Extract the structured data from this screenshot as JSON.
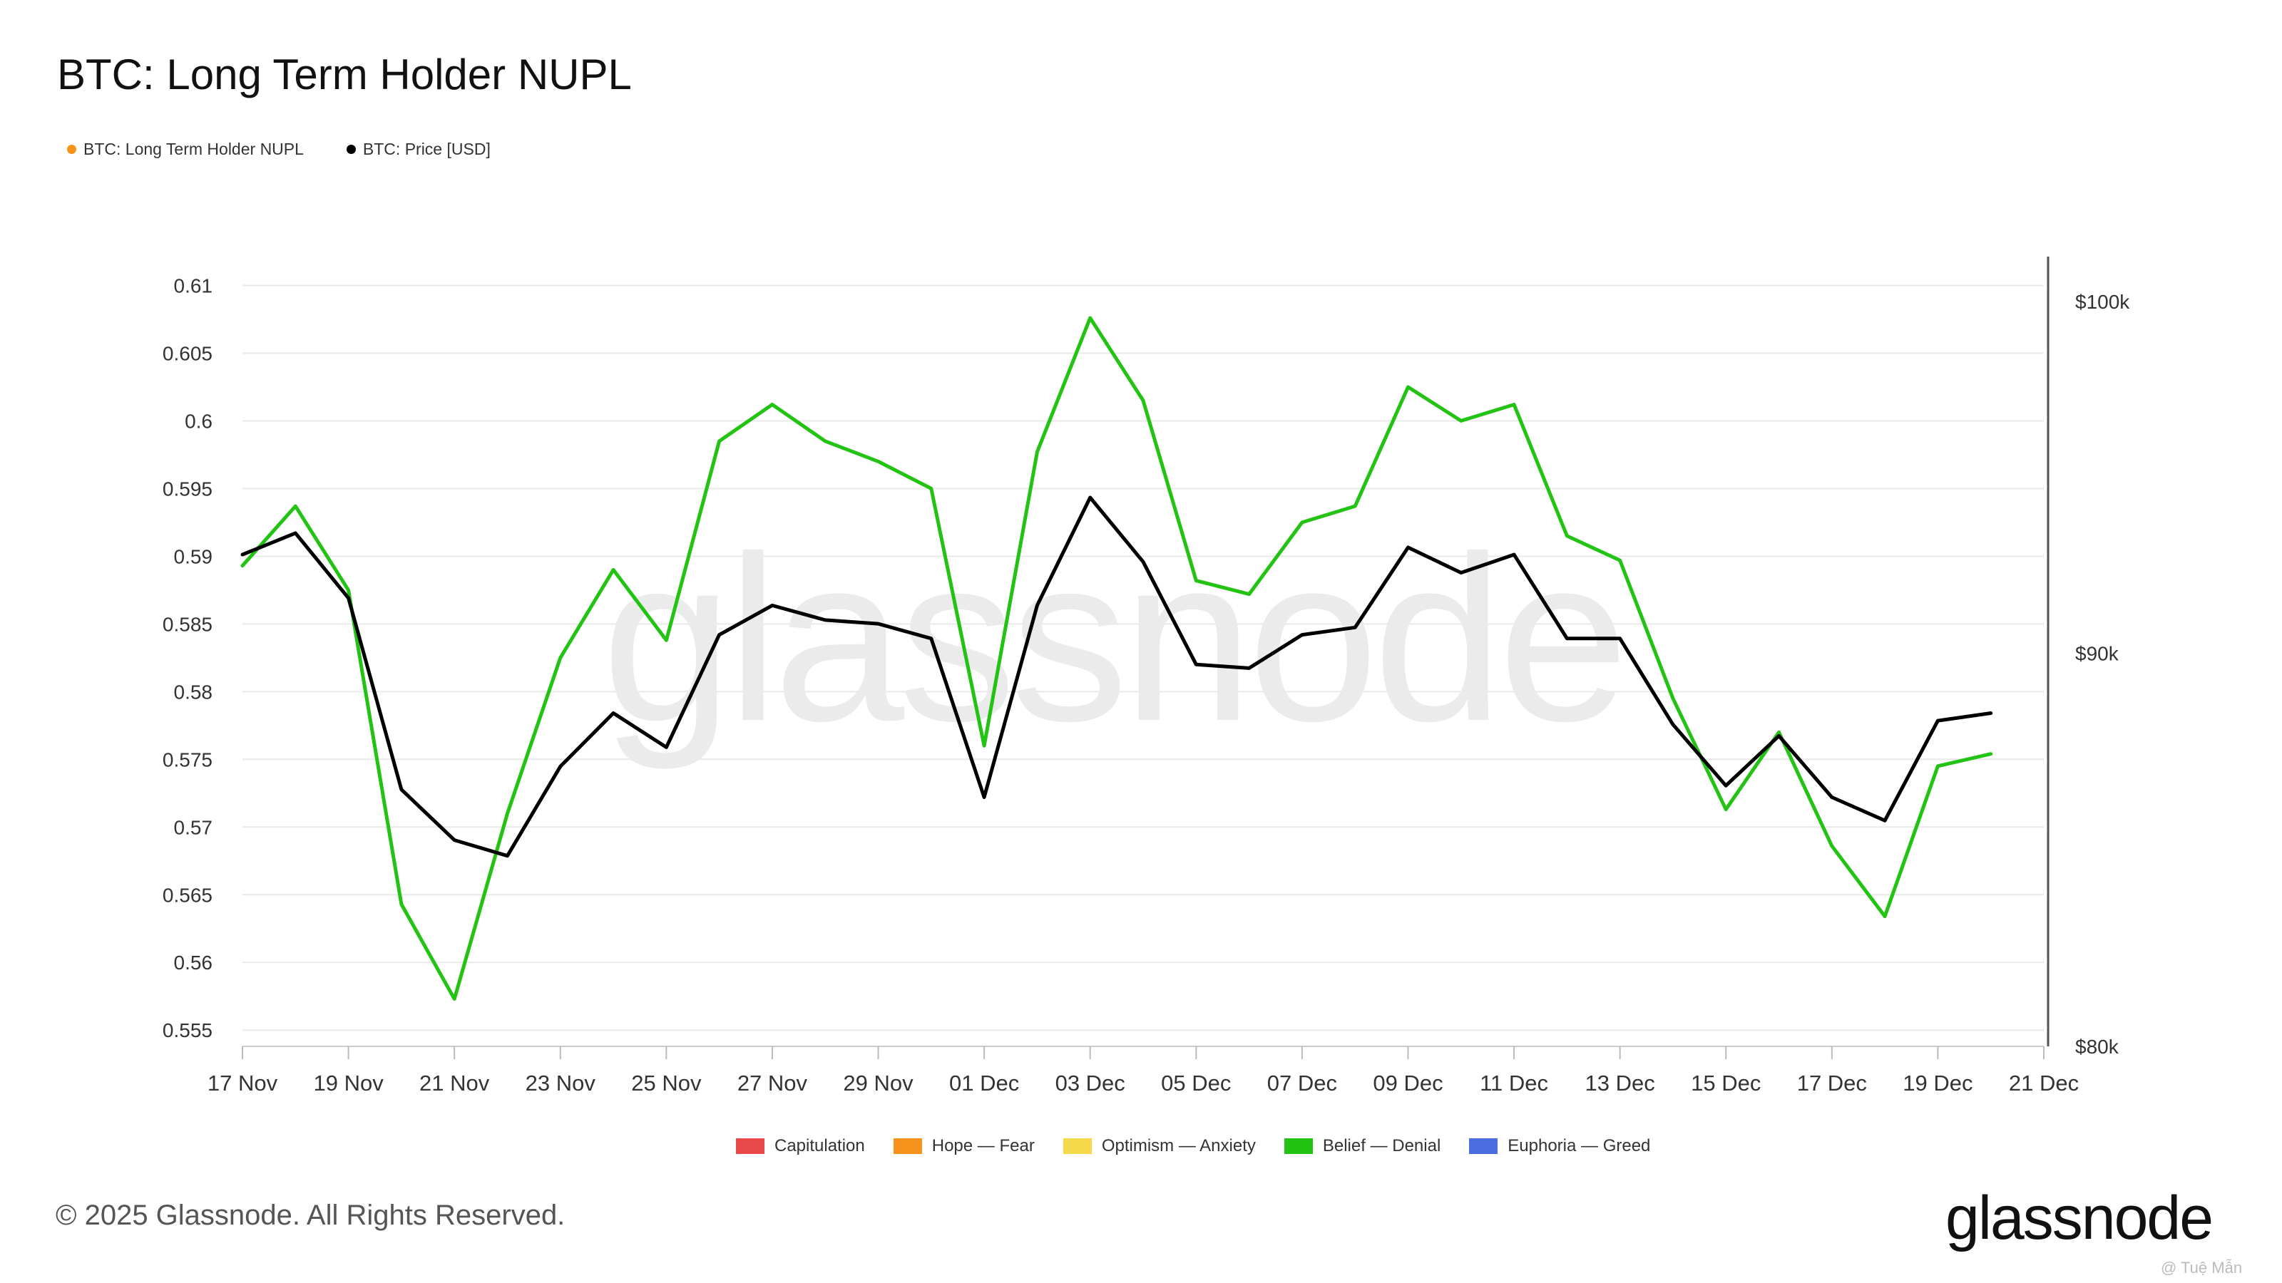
{
  "header": {
    "title": "BTC: Long Term Holder NUPL"
  },
  "legend": [
    {
      "label": "BTC: Long Term Holder NUPL",
      "color": "#f7931a"
    },
    {
      "label": "BTC: Price [USD]",
      "color": "#000000"
    }
  ],
  "zones": [
    {
      "label": "Capitulation",
      "color": "#e84a4a"
    },
    {
      "label": "Hope — Fear",
      "color": "#f7931a"
    },
    {
      "label": "Optimism — Anxiety",
      "color": "#f5d94a"
    },
    {
      "label": "Belief — Denial",
      "color": "#22c313"
    },
    {
      "label": "Euphoria — Greed",
      "color": "#4a6ee0"
    }
  ],
  "footer": {
    "copyright": "© 2025 Glassnode. All Rights Reserved.",
    "brand": "glassnode",
    "credit": "@ Tuệ Mẫn"
  },
  "chart_data": {
    "type": "line",
    "watermark": "glassnode",
    "x": [
      "17 Nov",
      "18 Nov",
      "19 Nov",
      "20 Nov",
      "21 Nov",
      "22 Nov",
      "23 Nov",
      "24 Nov",
      "25 Nov",
      "26 Nov",
      "27 Nov",
      "28 Nov",
      "29 Nov",
      "30 Nov",
      "01 Dec",
      "02 Dec",
      "03 Dec",
      "04 Dec",
      "05 Dec",
      "06 Dec",
      "07 Dec",
      "08 Dec",
      "09 Dec",
      "10 Dec",
      "11 Dec",
      "12 Dec",
      "13 Dec",
      "14 Dec",
      "15 Dec",
      "16 Dec",
      "17 Dec",
      "18 Dec",
      "19 Dec",
      "20 Dec"
    ],
    "x_tick_labels": [
      "17 Nov",
      "19 Nov",
      "21 Nov",
      "23 Nov",
      "25 Nov",
      "27 Nov",
      "29 Nov",
      "01 Dec",
      "03 Dec",
      "05 Dec",
      "07 Dec",
      "09 Dec",
      "11 Dec",
      "13 Dec",
      "15 Dec",
      "17 Dec",
      "19 Dec",
      "21 Dec"
    ],
    "y_left": {
      "ticks": [
        0.555,
        0.56,
        0.565,
        0.57,
        0.575,
        0.58,
        0.585,
        0.59,
        0.595,
        0.6,
        0.605,
        0.61
      ],
      "tick_labels": [
        "0.555",
        "0.56",
        "0.565",
        "0.57",
        "0.575",
        "0.58",
        "0.585",
        "0.59",
        "0.595",
        "0.6",
        "0.605",
        "0.61"
      ],
      "range": [
        0.5538,
        0.6115
      ]
    },
    "y_right": {
      "ticks": [
        80000,
        90000,
        100000
      ],
      "tick_labels": [
        "$80k",
        "$90k",
        "$100k"
      ],
      "range": [
        80000,
        101100
      ],
      "scale": "log"
    },
    "grid": true,
    "series": [
      {
        "name": "BTC: Long Term Holder NUPL",
        "color": "#22c313",
        "axis": "left",
        "values": [
          0.5893,
          0.5937,
          0.5875,
          0.5643,
          0.5573,
          0.571,
          0.5825,
          0.589,
          0.5838,
          0.5985,
          0.6012,
          0.5985,
          0.597,
          0.595,
          0.576,
          0.5977,
          0.6076,
          0.6015,
          0.5882,
          0.5872,
          0.5925,
          0.5937,
          0.6025,
          0.6,
          0.6012,
          0.5915,
          0.5897,
          0.5795,
          0.5713,
          0.577,
          0.5686,
          0.5634,
          0.5745,
          0.5754
        ]
      },
      {
        "name": "BTC: Price [USD]",
        "color": "#000000",
        "axis": "right",
        "values": [
          92700,
          93300,
          91500,
          86400,
          85100,
          84700,
          87000,
          88400,
          87500,
          90500,
          91300,
          90900,
          90800,
          90400,
          86200,
          91300,
          94300,
          92500,
          89700,
          89600,
          90500,
          90700,
          92900,
          92200,
          92700,
          90400,
          90400,
          88100,
          86500,
          87800,
          86200,
          85600,
          88200,
          88400
        ]
      }
    ]
  }
}
